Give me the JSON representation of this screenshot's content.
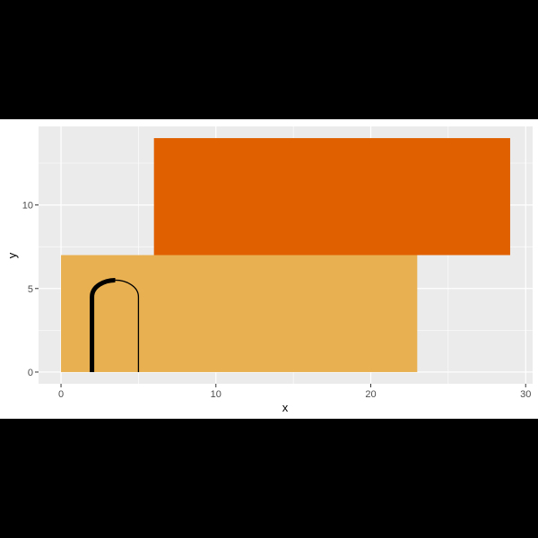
{
  "chart_data": {
    "type": "rect",
    "xlabel": "x",
    "ylabel": "y",
    "xlim": [
      -1.45,
      30.45
    ],
    "ylim": [
      -0.7,
      14.7
    ],
    "x_ticks": [
      0,
      10,
      20,
      30
    ],
    "y_ticks": [
      0,
      5,
      10
    ],
    "grid": true,
    "rects": [
      {
        "xmin": 0,
        "xmax": 23,
        "ymin": 0,
        "ymax": 7,
        "fill": "#E8B050"
      },
      {
        "xmin": 6,
        "xmax": 29,
        "ymin": 7,
        "ymax": 14,
        "fill": "#E06000"
      }
    ],
    "arch_path": {
      "color": "#000000",
      "points": [
        [
          2.0,
          0.0
        ],
        [
          2.0,
          4.5
        ],
        [
          3.5,
          5.5
        ],
        [
          5.0,
          4.5
        ],
        [
          5.0,
          0.0
        ]
      ],
      "thick_until_index": 2
    }
  }
}
